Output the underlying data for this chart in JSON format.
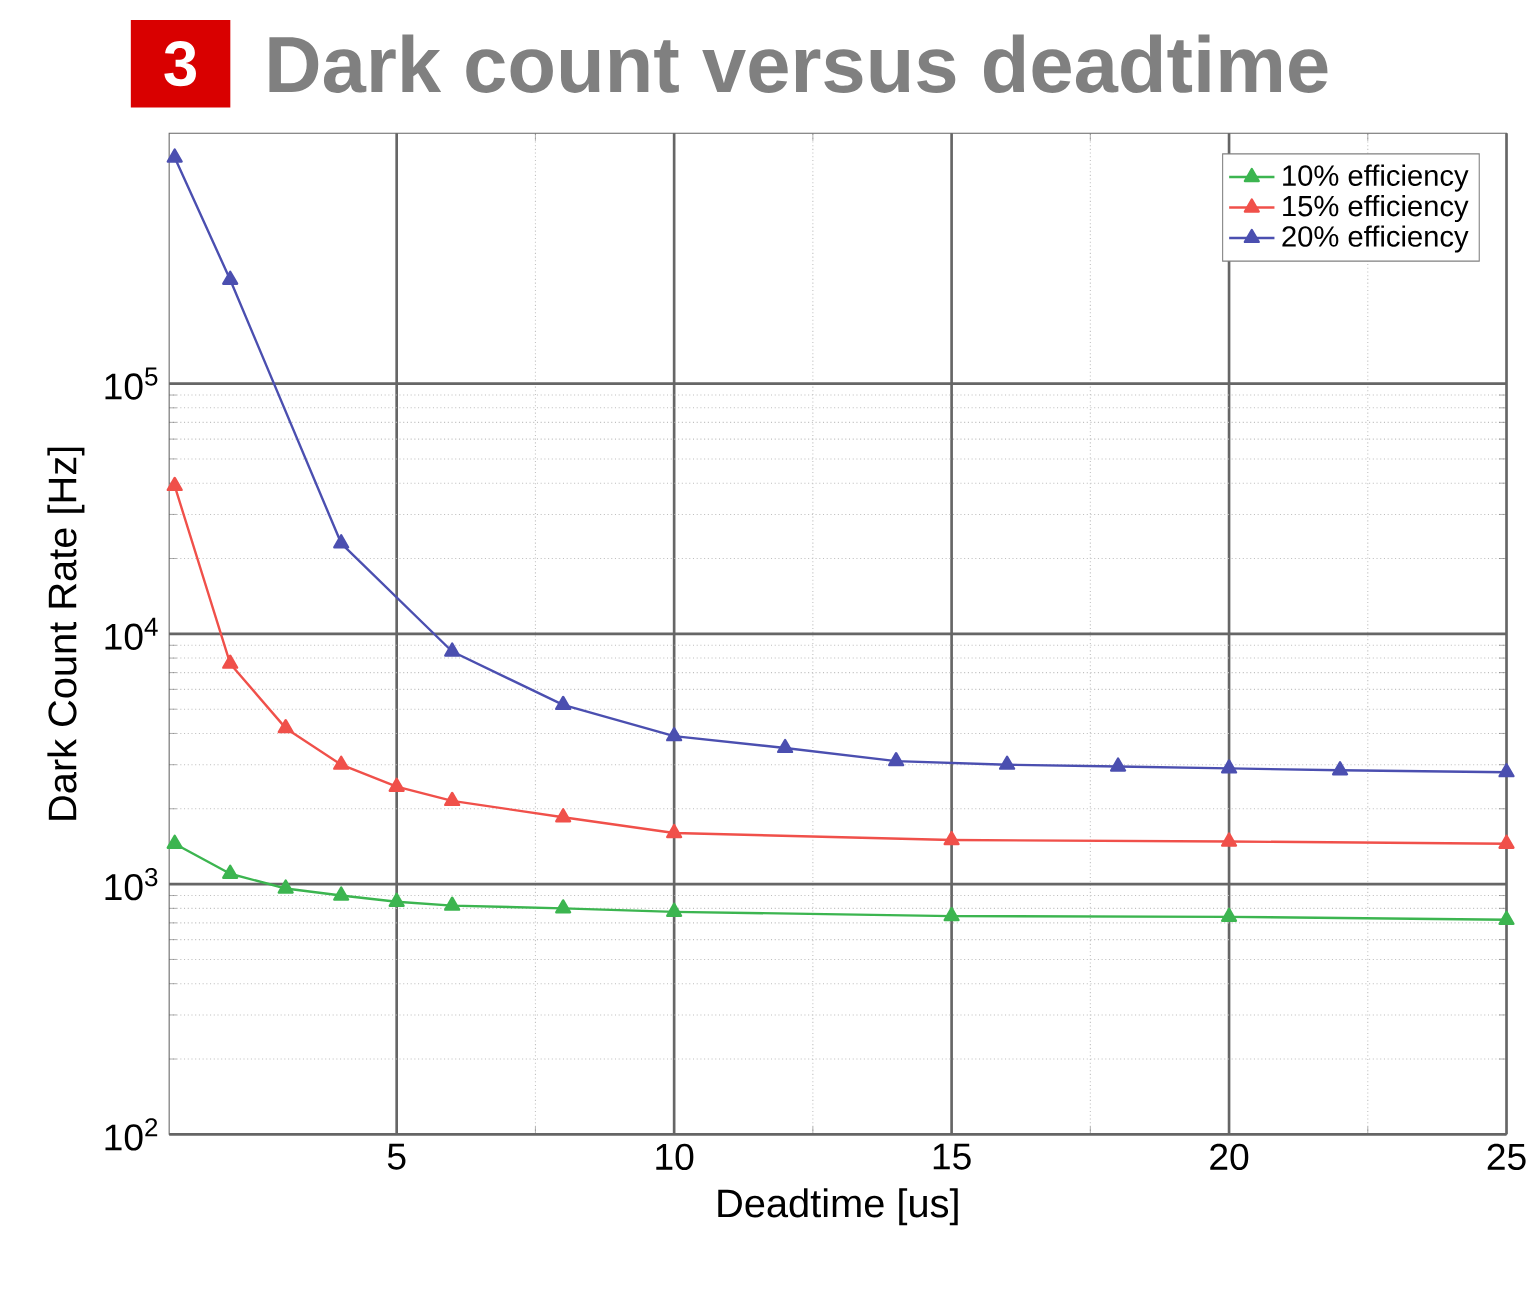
{
  "chart_data": {
    "type": "line",
    "title": "Dark count versus deadtime",
    "annotations": [
      "3"
    ],
    "xlabel": "Deadtime [us]",
    "ylabel": "Dark Count Rate [Hz]",
    "x": [
      1,
      2,
      3,
      4,
      5,
      6,
      8,
      10,
      15,
      20,
      25
    ],
    "xlim": [
      0.9,
      25
    ],
    "xticks": [
      5,
      10,
      15,
      20,
      25
    ],
    "ylim": [
      100,
      1000000
    ],
    "yticks": [
      {
        "value": 100,
        "label": "10$^{2}$"
      },
      {
        "value": 1000,
        "label": "10$^{3}$"
      },
      {
        "value": 10000,
        "label": "10$^{4}$"
      },
      {
        "value": 100000,
        "label": "10$^{5}$"
      }
    ],
    "log": "y",
    "grid": true,
    "legend": "top right",
    "marker": "triangle",
    "line_style": "solid",
    "series": [
      {
        "name": "10% efficiency",
        "color": "#3cb550",
        "values": [
          1450,
          1100,
          960,
          900,
          850,
          820,
          800,
          775,
          745,
          740,
          720
        ]
      },
      {
        "name": "15% efficiency",
        "color": "#f0504a",
        "values": [
          39000,
          7600,
          4200,
          3000,
          2450,
          2150,
          1850,
          1600,
          1500,
          1480,
          1450
        ]
      },
      {
        "name": "20% efficiency",
        "color": "#4b4fb0",
        "x": [
          1,
          2,
          4,
          6,
          8,
          10,
          12,
          14,
          16,
          18,
          20,
          22,
          25
        ],
        "values": [
          800000,
          260000,
          23000,
          8500,
          5200,
          3900,
          3500,
          3100,
          3000,
          2950,
          2900,
          2850,
          2800
        ]
      }
    ]
  }
}
